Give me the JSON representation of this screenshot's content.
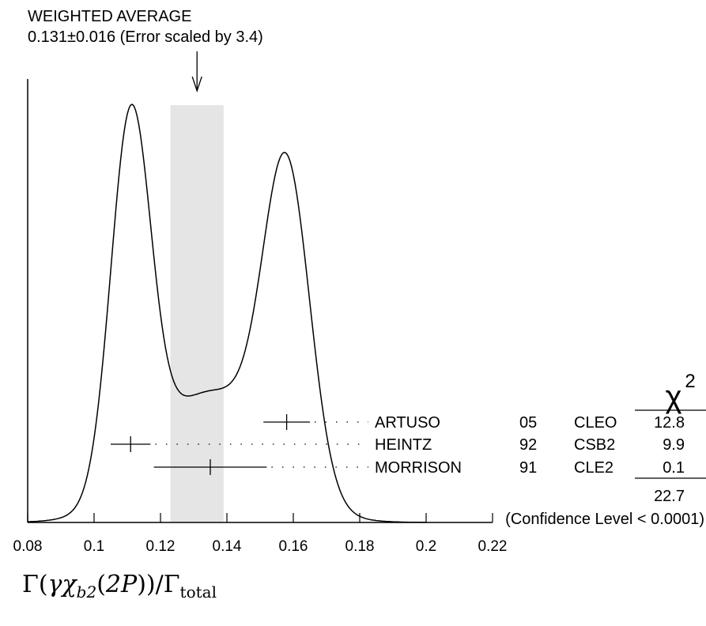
{
  "chart_data": {
    "type": "ideogram",
    "title": "WEIGHTED AVERAGE",
    "subtitle": "0.131±0.016 (Error scaled by 3.4)",
    "xlabel_parts": {
      "gamma": "Γ",
      "process": "γχ",
      "subscript": "b2",
      "state": "2P",
      "total_sub": "total"
    },
    "xlim": [
      0.08,
      0.22
    ],
    "xticks": [
      0.08,
      0.1,
      0.12,
      0.14,
      0.16,
      0.18,
      0.2,
      0.22
    ],
    "xtick_labels": [
      "0.08",
      "0.1",
      "0.12",
      "0.14",
      "0.16",
      "0.18",
      "0.2",
      "0.22"
    ],
    "average": {
      "value": 0.131,
      "error": 0.016
    },
    "measurements": [
      {
        "author": "ARTUSO",
        "year": "05",
        "experiment": "CLEO",
        "value": 0.158,
        "error": 0.007,
        "chi2": "12.8"
      },
      {
        "author": "HEINTZ",
        "year": "92",
        "experiment": "CSB2",
        "value": 0.111,
        "error": 0.006,
        "chi2": "9.9"
      },
      {
        "author": "MORRISON",
        "year": "91",
        "experiment": "CLE2",
        "value": 0.135,
        "error": 0.017,
        "chi2": "0.1"
      }
    ],
    "chi2_header": "χ",
    "chi2_power": "2",
    "chi2_total": "22.7",
    "confidence_level": "(Confidence Level < 0.0001)"
  }
}
